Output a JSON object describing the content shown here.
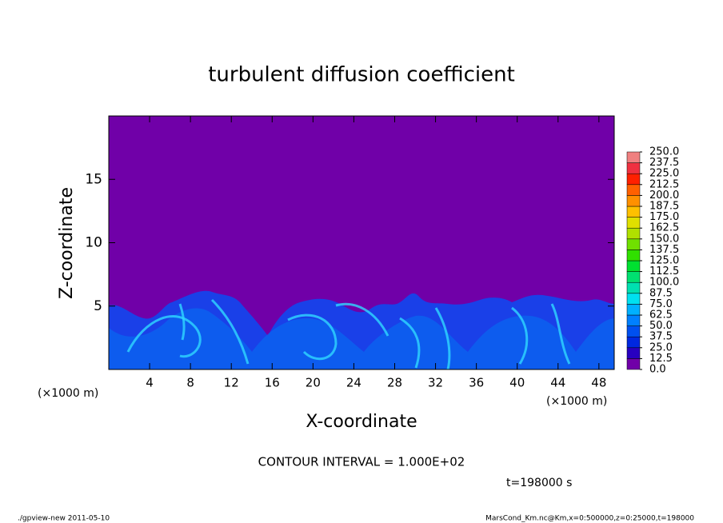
{
  "chart_data": {
    "type": "contour",
    "title": "turbulent diffusion coefficient",
    "x_label": "X-coordinate",
    "y_label": "Z-coordinate",
    "x_unit": "(×1000 m)",
    "y_unit": "(×1000 m)",
    "xlim": [
      0,
      49.5
    ],
    "ylim": [
      0,
      20
    ],
    "xticks": [
      4,
      8,
      12,
      16,
      20,
      24,
      28,
      32,
      36,
      40,
      44,
      48
    ],
    "yticks": [
      5,
      10,
      15
    ],
    "colorbar_ticks": [
      {
        "value": 0,
        "label": "0.0"
      },
      12.5,
      {
        "value": 25,
        "label": "25.0"
      },
      37.5,
      {
        "value": 50,
        "label": "50.0"
      },
      62.5,
      {
        "value": 75,
        "label": "75.0"
      },
      87.5,
      {
        "value": 100,
        "label": "100.0"
      },
      112.5,
      {
        "value": 125,
        "label": "125.0"
      },
      137.5,
      {
        "value": 150,
        "label": "150.0"
      },
      162.5,
      {
        "value": 175,
        "label": "175.0"
      },
      187.5,
      {
        "value": 200,
        "label": "200.0"
      },
      212.5,
      {
        "value": 225,
        "label": "225.0"
      },
      237.5,
      {
        "value": 250,
        "label": "250.0"
      }
    ],
    "colorbar_colors": [
      "#7000a8",
      "#2800c0",
      "#0028e0",
      "#0050f0",
      "#0080ff",
      "#00b0ff",
      "#00e0f0",
      "#00e0b0",
      "#00e070",
      "#00e030",
      "#30e000",
      "#70e000",
      "#b0e000",
      "#e0e000",
      "#ffc000",
      "#ff9000",
      "#ff6000",
      "#ff2000",
      "#f03040",
      "#f08080"
    ],
    "contour_interval": "CONTOUR INTERVAL = 1.000E+02",
    "time_label": "t=198000 s",
    "footer_left": "./gpview-new   2011-05-10",
    "footer_right": "MarsCond_Km.nc@Km,x=0:500000,z=0:25000,t=198000"
  }
}
